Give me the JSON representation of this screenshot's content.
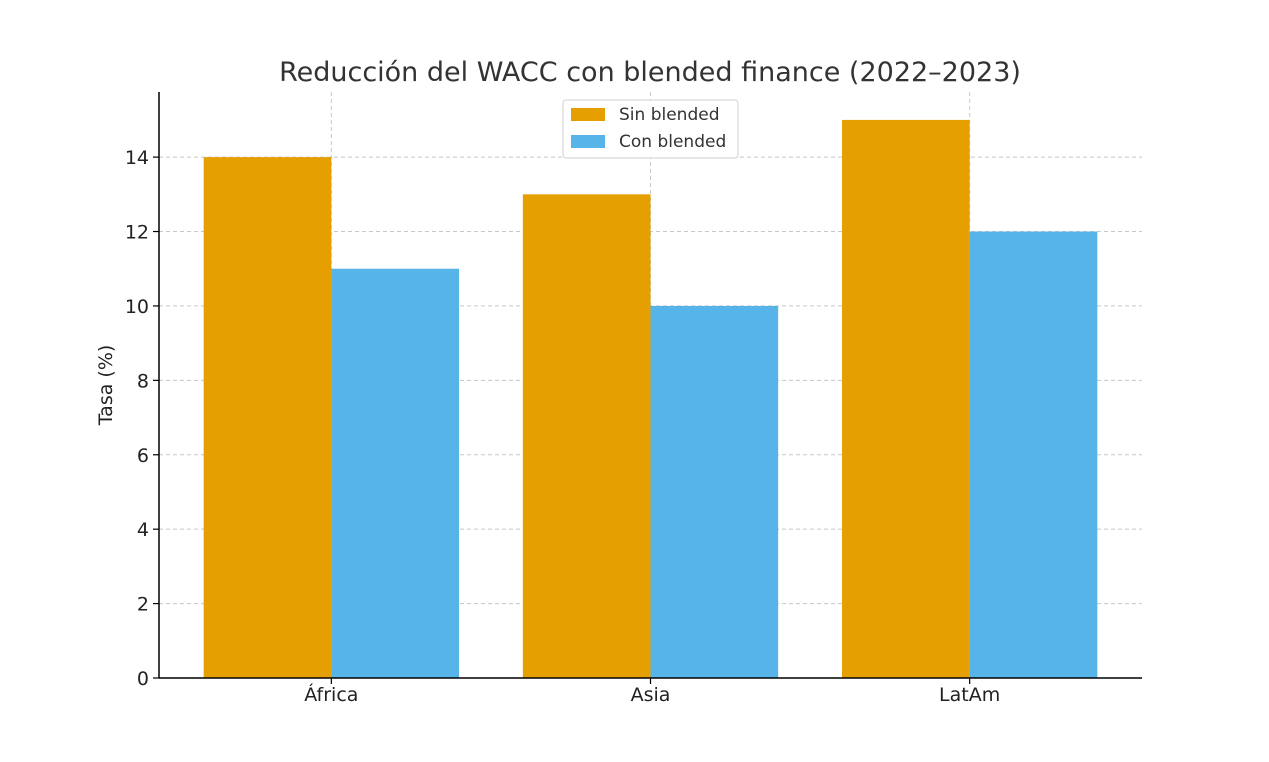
{
  "chart_data": {
    "type": "bar",
    "title": "Reducción del WACC con blended finance (2022–2023)",
    "xlabel": "",
    "ylabel": "Tasa (%)",
    "categories": [
      "África",
      "Asia",
      "LatAm"
    ],
    "series": [
      {
        "name": "Sin blended",
        "values": [
          14,
          13,
          15
        ],
        "color": "#E69F00"
      },
      {
        "name": "Con blended",
        "values": [
          11,
          10,
          12
        ],
        "color": "#56B4E9"
      }
    ],
    "ylim": [
      0,
      15.75
    ],
    "yticks": [
      0,
      2,
      4,
      6,
      8,
      10,
      12,
      14
    ],
    "grid": true,
    "legend_position": "top-center"
  }
}
